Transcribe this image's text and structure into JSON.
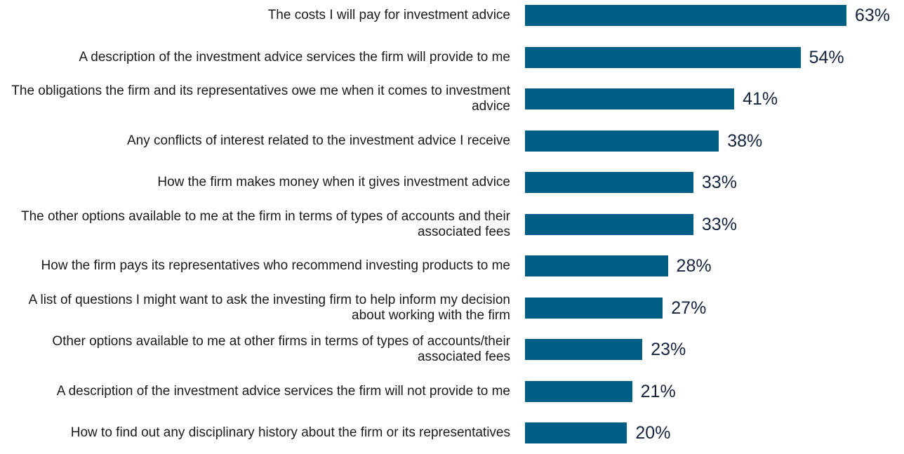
{
  "chart_data": {
    "type": "bar",
    "orientation": "horizontal",
    "color": "#005e85",
    "categories": [
      "The costs I will pay for investment advice",
      "A description of the investment advice services the firm will provide to me",
      "The obligations the firm and its representatives owe me when it comes to investment advice",
      "Any conflicts of interest related to the investment advice I receive",
      "How the firm makes money when it gives investment advice",
      "The other options available to me at the firm in terms of types of accounts and their associated fees",
      "How the firm pays its representatives who recommend investing products to me",
      "A list of questions I might want to ask the investing firm to help inform my decision about working with the firm",
      "Other options available to me at other firms in terms of types of accounts/their associated fees",
      "A description of the investment advice services the firm will not provide to me",
      "How to find out any disciplinary history about the firm or its representatives"
    ],
    "values": [
      63,
      54,
      41,
      38,
      33,
      33,
      28,
      27,
      23,
      21,
      20
    ],
    "value_labels": [
      "63%",
      "54%",
      "41%",
      "38%",
      "33%",
      "33%",
      "28%",
      "27%",
      "23%",
      "21%",
      "20%"
    ]
  }
}
